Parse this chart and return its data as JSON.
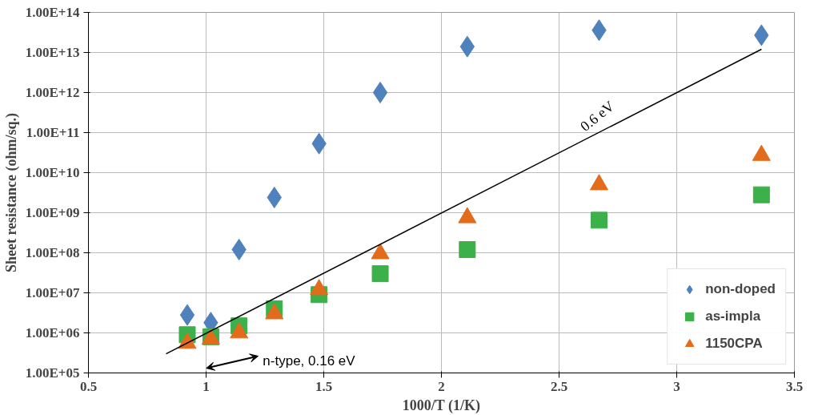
{
  "chart_data": {
    "type": "scatter",
    "xlabel": "1000/T (1/K)",
    "ylabel": "Sheet resistance (ohm/sq.)",
    "log": "y",
    "grid": true,
    "legend": "bottom right",
    "xlim": [
      0.5,
      3.5
    ],
    "xticks": [
      0.5,
      1,
      1.5,
      2,
      2.5,
      3,
      3.5
    ],
    "ylim": [
      100000.0,
      100000000000000.0
    ],
    "yticks": [
      {
        "value": 100000.0,
        "label": "1.00E+05"
      },
      {
        "value": 1000000.0,
        "label": "1.00E+06"
      },
      {
        "value": 10000000.0,
        "label": "1.00E+07"
      },
      {
        "value": 100000000.0,
        "label": "1.00E+08"
      },
      {
        "value": 1000000000.0,
        "label": "1.00E+09"
      },
      {
        "value": 10000000000.0,
        "label": "1.00E+10"
      },
      {
        "value": 100000000000.0,
        "label": "1.00E+11"
      },
      {
        "value": 1000000000000.0,
        "label": "1.00E+12"
      },
      {
        "value": 10000000000000.0,
        "label": "1.00E+13"
      },
      {
        "value": 100000000000000.0,
        "label": "1.00E+14"
      }
    ],
    "x": [
      0.92,
      1.02,
      1.14,
      1.29,
      1.48,
      1.74,
      2.11,
      2.67,
      3.36
    ],
    "series": [
      {
        "name": "non-doped",
        "color": "#4f81bd",
        "marker": "diamond",
        "values": [
          2800000.0,
          1800000.0,
          120000000.0,
          2400000000.0,
          53000000000.0,
          1000000000000.0,
          14000000000000.0,
          36000000000000.0,
          27000000000000.0
        ]
      },
      {
        "name": "as-impla",
        "color": "#3cb04a",
        "marker": "square",
        "values": [
          900000.0,
          800000.0,
          1500000.0,
          4000000.0,
          9000000.0,
          30000000.0,
          120000000.0,
          650000000.0,
          2800000000.0
        ]
      },
      {
        "name": "1150CPA",
        "color": "#e36c1c",
        "marker": "triangle",
        "values": [
          550000.0,
          700000.0,
          1000000.0,
          3000000.0,
          12000000.0,
          95000000.0,
          750000000.0,
          5000000000.0,
          27000000000.0
        ]
      },
      {
        "type": "line",
        "color": "#000000",
        "marker": "none",
        "x": [
          0.83,
          3.36
        ],
        "values": [
          300000.0,
          12000000000000.0
        ]
      }
    ],
    "annotations": [
      {
        "text": "0.6 eV",
        "x": 2.62,
        "y": 90000000000.0
      },
      "n-type,  0.16 eV"
    ]
  }
}
